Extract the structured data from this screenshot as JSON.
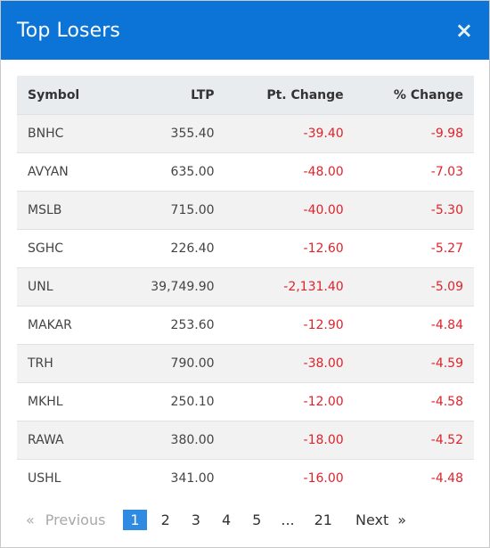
{
  "modal": {
    "title": "Top Losers",
    "close_icon": "×"
  },
  "table": {
    "headers": {
      "symbol": "Symbol",
      "ltp": "LTP",
      "pt_change": "Pt. Change",
      "pct_change": "% Change"
    },
    "rows": [
      {
        "symbol": "BNHC",
        "ltp": "355.40",
        "pt_change": "-39.40",
        "pct_change": "-9.98"
      },
      {
        "symbol": "AVYAN",
        "ltp": "635.00",
        "pt_change": "-48.00",
        "pct_change": "-7.03"
      },
      {
        "symbol": "MSLB",
        "ltp": "715.00",
        "pt_change": "-40.00",
        "pct_change": "-5.30"
      },
      {
        "symbol": "SGHC",
        "ltp": "226.40",
        "pt_change": "-12.60",
        "pct_change": "-5.27"
      },
      {
        "symbol": "UNL",
        "ltp": "39,749.90",
        "pt_change": "-2,131.40",
        "pct_change": "-5.09"
      },
      {
        "symbol": "MAKAR",
        "ltp": "253.60",
        "pt_change": "-12.90",
        "pct_change": "-4.84"
      },
      {
        "symbol": "TRH",
        "ltp": "790.00",
        "pt_change": "-38.00",
        "pct_change": "-4.59"
      },
      {
        "symbol": "MKHL",
        "ltp": "250.10",
        "pt_change": "-12.00",
        "pct_change": "-4.58"
      },
      {
        "symbol": "RAWA",
        "ltp": "380.00",
        "pt_change": "-18.00",
        "pct_change": "-4.52"
      },
      {
        "symbol": "USHL",
        "ltp": "341.00",
        "pt_change": "-16.00",
        "pct_change": "-4.48"
      }
    ]
  },
  "pagination": {
    "prev_arrow": "«",
    "prev_label": "Previous",
    "pages": [
      "1",
      "2",
      "3",
      "4",
      "5"
    ],
    "active_page": "1",
    "ellipsis": "...",
    "last_page": "21",
    "next_label": "Next",
    "next_arrow": "»"
  },
  "colors": {
    "header_bg": "#0b74d6",
    "negative": "#e0232b",
    "active_page_bg": "#2f8ae2"
  }
}
